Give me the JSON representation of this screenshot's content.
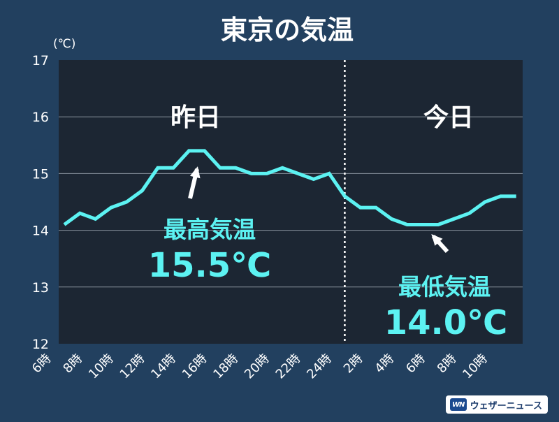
{
  "chart_data": {
    "type": "line",
    "title": "東京の気温",
    "unit_label": "(℃)",
    "ylim": [
      12,
      17
    ],
    "y_ticks": [
      "12",
      "13",
      "14",
      "15",
      "16",
      "17"
    ],
    "x_tick_labels": [
      "6時",
      "8時",
      "10時",
      "12時",
      "14時",
      "16時",
      "18時",
      "20時",
      "22時",
      "24時",
      "2時",
      "4時",
      "6時",
      "8時",
      "10時"
    ],
    "x_tick_hour_index": [
      0,
      2,
      4,
      6,
      8,
      10,
      12,
      14,
      16,
      18,
      20,
      22,
      24,
      26,
      28
    ],
    "hours": [
      0,
      1,
      2,
      3,
      4,
      5,
      6,
      7,
      8,
      9,
      10,
      11,
      12,
      13,
      14,
      15,
      16,
      17,
      18,
      19,
      20,
      21,
      22,
      23,
      24,
      25,
      26,
      27,
      28,
      29
    ],
    "series": [
      {
        "values": [
          14.1,
          14.3,
          14.2,
          14.4,
          14.5,
          14.7,
          15.1,
          15.1,
          15.4,
          15.4,
          15.1,
          15.1,
          15.0,
          15.0,
          15.1,
          15.0,
          14.9,
          15.0,
          14.6,
          14.4,
          14.4,
          14.2,
          14.1,
          14.1,
          14.1,
          14.2,
          14.3,
          14.5,
          14.6,
          14.6
        ],
        "color": "#5cf2f2"
      }
    ],
    "divider_hour": 18,
    "section_labels": {
      "yesterday": "昨日",
      "today": "今日"
    },
    "annotations": {
      "max": {
        "label": "最高気温",
        "value_text": "15.5℃",
        "hour": 8.5
      },
      "min": {
        "label": "最低気温",
        "value_text": "14.0℃",
        "hour": 23
      }
    },
    "colors": {
      "background": "#22405f",
      "plot_area": "#1c2633",
      "grid": "#8a94a0",
      "line": "#5cf2f2",
      "text": "#ffffff"
    }
  },
  "brand": {
    "logo_text": "WN",
    "name": "ウェザーニュース"
  }
}
